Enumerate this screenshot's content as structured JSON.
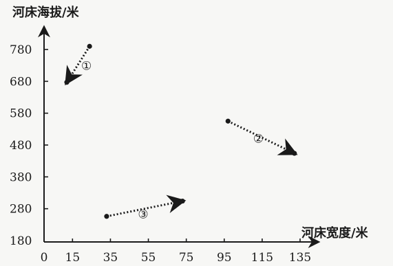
{
  "chart_data": {
    "type": "scatter",
    "title": "",
    "xlabel": "河床宽度/米",
    "ylabel": "河床海拔/米",
    "xlim": [
      0,
      135
    ],
    "ylim": [
      180,
      780
    ],
    "xticks": [
      0,
      15,
      35,
      55,
      75,
      95,
      115,
      135
    ],
    "yticks": [
      180,
      280,
      380,
      480,
      580,
      680,
      780
    ],
    "grid": false,
    "legend": "none",
    "color": "#1a1a1a",
    "segments": [
      {
        "label": "①",
        "from": [
          24,
          790
        ],
        "to": [
          12,
          677
        ]
      },
      {
        "label": "②",
        "from": [
          97,
          555
        ],
        "to": [
          132,
          454
        ]
      },
      {
        "label": "③",
        "from": [
          33,
          256
        ],
        "to": [
          73,
          304
        ]
      }
    ]
  }
}
